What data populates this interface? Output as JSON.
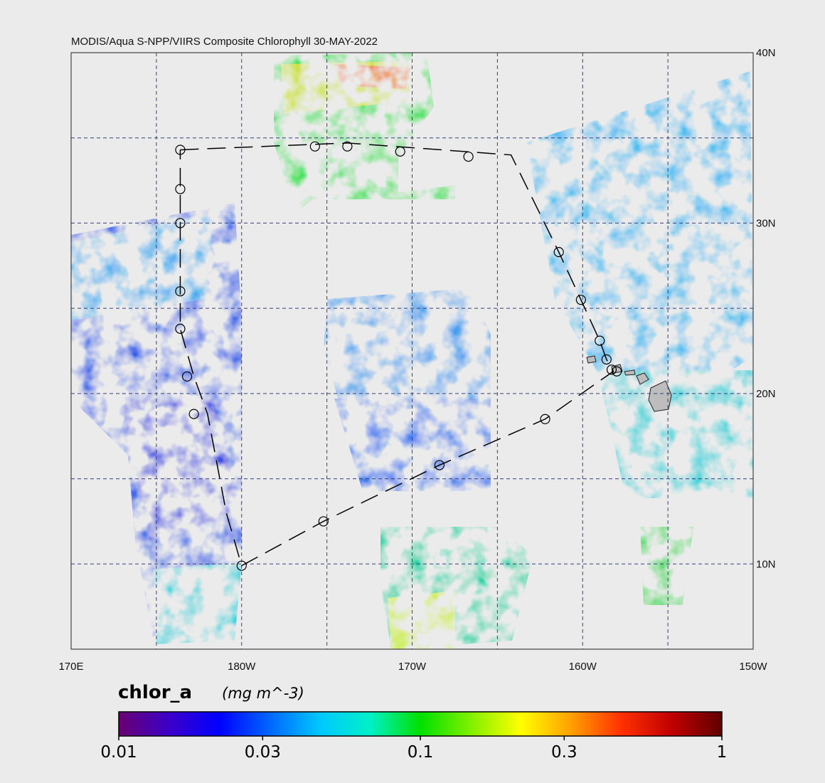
{
  "title": "MODIS/Aqua S-NPP/VIIRS Composite Chlorophyll 30-MAY-2022",
  "map": {
    "lon_range": [
      170,
      210
    ],
    "lat_range": [
      5,
      40
    ],
    "lat_labels": [
      "40N",
      "30N",
      "20N",
      "10N"
    ],
    "lon_labels": [
      "170E",
      "180W",
      "170W",
      "160W",
      "150W"
    ],
    "gridline_color": "#3a3f7a",
    "land_color": "#bdbdbd",
    "track_waypoints": [
      {
        "lon": 176.4,
        "lat": 34.3
      },
      {
        "lon": 186.2,
        "lat": 34.7
      },
      {
        "lon": 195.8,
        "lat": 34.0
      },
      {
        "lon": 198.6,
        "lat": 28.3
      },
      {
        "lon": 199.9,
        "lat": 25.5
      },
      {
        "lon": 201.0,
        "lat": 23.1
      },
      {
        "lon": 201.4,
        "lat": 22.0
      },
      {
        "lon": 201.8,
        "lat": 21.3
      },
      {
        "lon": 197.8,
        "lat": 18.5
      },
      {
        "lon": 191.6,
        "lat": 15.8
      },
      {
        "lon": 184.8,
        "lat": 12.5
      },
      {
        "lon": 180.0,
        "lat": 9.9
      },
      {
        "lon": 179.1,
        "lat": 13.0
      },
      {
        "lon": 178.0,
        "lat": 18.8
      },
      {
        "lon": 177.2,
        "lat": 21.0
      },
      {
        "lon": 176.4,
        "lat": 23.8
      },
      {
        "lon": 176.4,
        "lat": 26.0
      },
      {
        "lon": 176.4,
        "lat": 30.0
      },
      {
        "lon": 176.4,
        "lat": 32.0
      },
      {
        "lon": 176.4,
        "lat": 34.3
      }
    ],
    "stations": [
      {
        "lon": 176.4,
        "lat": 34.3
      },
      {
        "lon": 184.3,
        "lat": 34.5
      },
      {
        "lon": 186.2,
        "lat": 34.5
      },
      {
        "lon": 189.3,
        "lat": 34.2
      },
      {
        "lon": 193.3,
        "lat": 33.9
      },
      {
        "lon": 198.6,
        "lat": 28.3
      },
      {
        "lon": 199.9,
        "lat": 25.5
      },
      {
        "lon": 201.0,
        "lat": 23.1
      },
      {
        "lon": 201.4,
        "lat": 22.0
      },
      {
        "lon": 201.7,
        "lat": 21.4
      },
      {
        "lon": 202.0,
        "lat": 21.3
      },
      {
        "lon": 197.8,
        "lat": 18.5
      },
      {
        "lon": 191.6,
        "lat": 15.8
      },
      {
        "lon": 184.8,
        "lat": 12.5
      },
      {
        "lon": 180.0,
        "lat": 9.9
      },
      {
        "lon": 177.2,
        "lat": 18.8
      },
      {
        "lon": 176.8,
        "lat": 21.0
      },
      {
        "lon": 176.4,
        "lat": 23.8
      },
      {
        "lon": 176.4,
        "lat": 26.0
      },
      {
        "lon": 176.4,
        "lat": 30.0
      },
      {
        "lon": 176.4,
        "lat": 32.0
      }
    ]
  },
  "colorbar": {
    "variable": "chlor_a",
    "units": "(mg m^-3)",
    "ticks": [
      "0.01",
      "0.03",
      "0.1",
      "0.3",
      "1"
    ],
    "tick_values": [
      0.01,
      0.03,
      0.1,
      0.3,
      1
    ],
    "scale": "log",
    "colors": [
      "#6a0070",
      "#3c00c8",
      "#0000ff",
      "#0066ff",
      "#00c8ff",
      "#00f0c8",
      "#00e000",
      "#80f000",
      "#ffff00",
      "#ffa000",
      "#ff3000",
      "#c00000",
      "#600000"
    ]
  }
}
